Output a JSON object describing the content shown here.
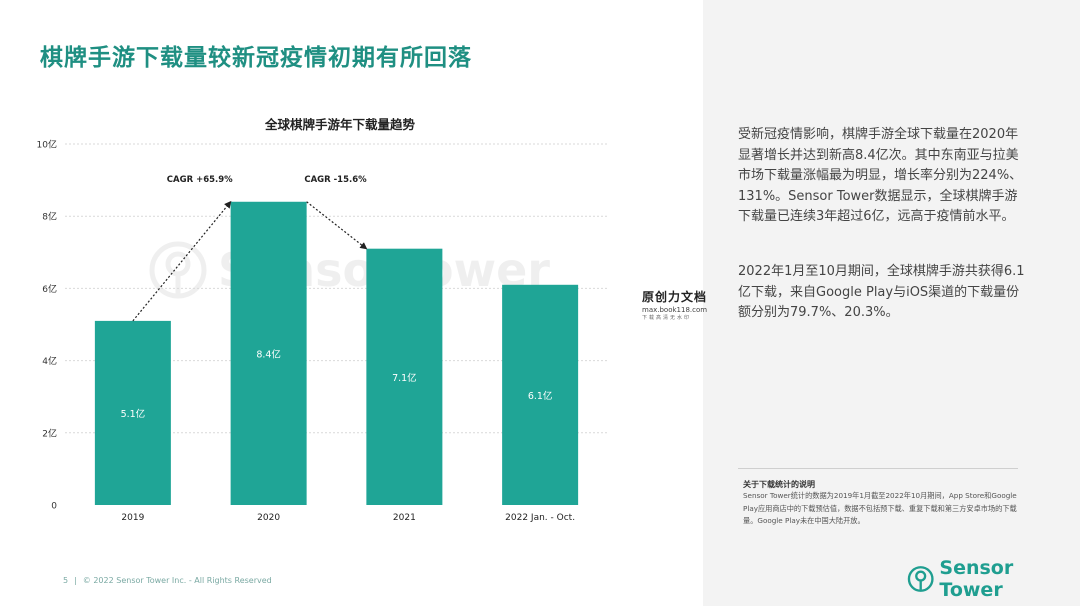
{
  "page": {
    "title": "棋牌手游下载量较新冠疫情初期有所回落",
    "page_number": "5",
    "separator": "|",
    "copyright": "© 2022 Sensor Tower Inc. - All Rights Reserved",
    "logo_text": "Sensor Tower",
    "background_watermark": "SensorTower"
  },
  "chart_data": {
    "type": "bar",
    "title": "全球棋牌手游年下载量趋势",
    "categories": [
      "2019",
      "2020",
      "2021",
      "2022 Jan. - Oct."
    ],
    "values": [
      5.1,
      8.4,
      7.1,
      6.1
    ],
    "value_labels": [
      "5.1亿",
      "8.4亿",
      "7.1亿",
      "6.1亿"
    ],
    "unit": "亿",
    "ylim": [
      0,
      10
    ],
    "yticks": [
      0,
      2,
      4,
      6,
      8,
      10
    ],
    "ytick_labels": [
      "0",
      "2亿",
      "4亿",
      "6亿",
      "8亿",
      "10亿"
    ],
    "grid": true,
    "bar_color": "#1fa596",
    "annotations": [
      {
        "text": "CAGR +65.9%",
        "from": "2019",
        "to": "2020"
      },
      {
        "text": "CAGR -15.6%",
        "from": "2020",
        "to": "2021"
      }
    ]
  },
  "text_panel": {
    "paragraph1": "受新冠疫情影响，棋牌手游全球下载量在2020年显著增长并达到新高8.4亿次。其中东南亚与拉美市场下载量涨幅最为明显，增长率分别为224%、131%。Sensor Tower数据显示，全球棋牌手游下载量已连续3年超过6亿，远高于疫情前水平。",
    "paragraph2": "2022年1月至10月期间，全球棋牌手游共获得6.1亿下载，来自Google Play与iOS渠道的下载量份额分别为79.7%、20.3%。",
    "note_title": "关于下载统计的说明",
    "note_body": "Sensor Tower统计的数据为2019年1月截至2022年10月期间，App Store和Google Play应用商店中的下载预估值，数据不包括预下载、重复下载和第三方安卓市场的下载量。Google Play未在中国大陆开放。"
  },
  "watermark": {
    "title": "原创力文档",
    "url": "max.book118.com",
    "subtitle": "下载高清无水印"
  },
  "colors": {
    "accent": "#1f8f82",
    "bar": "#1fa596",
    "panel_bg": "#f3f3f3"
  }
}
